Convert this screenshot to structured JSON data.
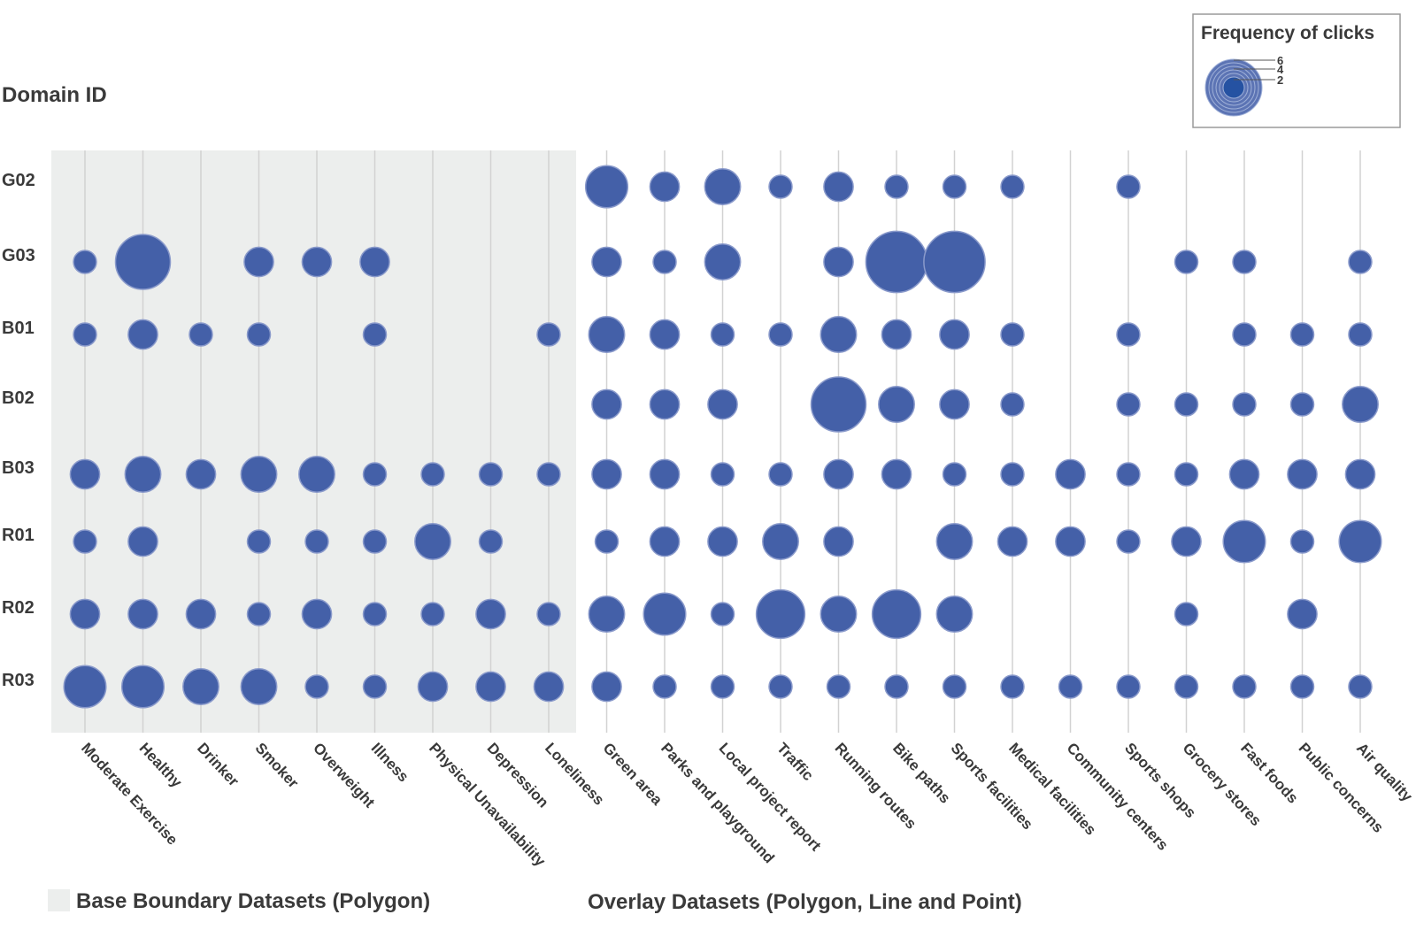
{
  "chart_data": {
    "type": "scatter",
    "y_axis_title": "Domain ID",
    "rows": [
      "G02",
      "G03",
      "B01",
      "B02",
      "B03",
      "R01",
      "R02",
      "R03"
    ],
    "columns": [
      "Moderate Exercise",
      "Healthy",
      "Drinker",
      "Smoker",
      "Overweight",
      "Illness",
      "Physical Unavailability",
      "Depression",
      "Loneliness",
      "Green area",
      "Parks and playground",
      "Local project report",
      "Traffic",
      "Running routes",
      "Bike paths",
      "Sports facilities",
      "Medical facilities",
      "Community centers",
      "Sports shops",
      "Grocery stores",
      "Fast foods",
      "Public concerns",
      "Air quality"
    ],
    "base_column_count": 9,
    "values": [
      [
        0,
        0,
        0,
        0,
        0,
        0,
        0,
        0,
        0,
        5,
        3,
        4,
        2,
        3,
        2,
        2,
        2,
        0,
        2,
        0,
        0,
        0,
        0
      ],
      [
        2,
        7,
        0,
        3,
        3,
        3,
        0,
        0,
        0,
        3,
        2,
        4,
        0,
        3,
        8,
        8,
        0,
        0,
        0,
        2,
        2,
        0,
        2
      ],
      [
        2,
        3,
        2,
        2,
        0,
        2,
        0,
        0,
        2,
        4,
        3,
        2,
        2,
        4,
        3,
        3,
        2,
        0,
        2,
        0,
        2,
        2,
        2
      ],
      [
        0,
        0,
        0,
        0,
        0,
        0,
        0,
        0,
        0,
        3,
        3,
        3,
        0,
        7,
        4,
        3,
        2,
        0,
        2,
        2,
        2,
        2,
        4
      ],
      [
        3,
        4,
        3,
        4,
        4,
        2,
        2,
        2,
        2,
        3,
        3,
        2,
        2,
        3,
        3,
        2,
        2,
        3,
        2,
        2,
        3,
        3,
        3
      ],
      [
        2,
        3,
        0,
        2,
        2,
        2,
        4,
        2,
        0,
        2,
        3,
        3,
        4,
        3,
        0,
        4,
        3,
        3,
        2,
        3,
        5,
        2,
        5
      ],
      [
        3,
        3,
        3,
        2,
        3,
        2,
        2,
        3,
        2,
        4,
        5,
        2,
        6,
        4,
        6,
        4,
        0,
        0,
        0,
        2,
        0,
        3,
        0
      ],
      [
        5,
        5,
        4,
        4,
        2,
        2,
        3,
        3,
        3,
        3,
        2,
        2,
        2,
        2,
        2,
        2,
        2,
        2,
        2,
        2,
        2,
        2,
        2
      ]
    ],
    "grid": true,
    "color": "#4460a8",
    "base_region_color": "#eceeed",
    "legend": {
      "title": "Frequency of clicks",
      "ticks": [
        "6",
        "4",
        "2"
      ],
      "placement": "top-right"
    },
    "group_labels": {
      "base": "Base Boundary Datasets (Polygon)",
      "overlay": "Overlay Datasets (Polygon, Line and Point)"
    }
  }
}
